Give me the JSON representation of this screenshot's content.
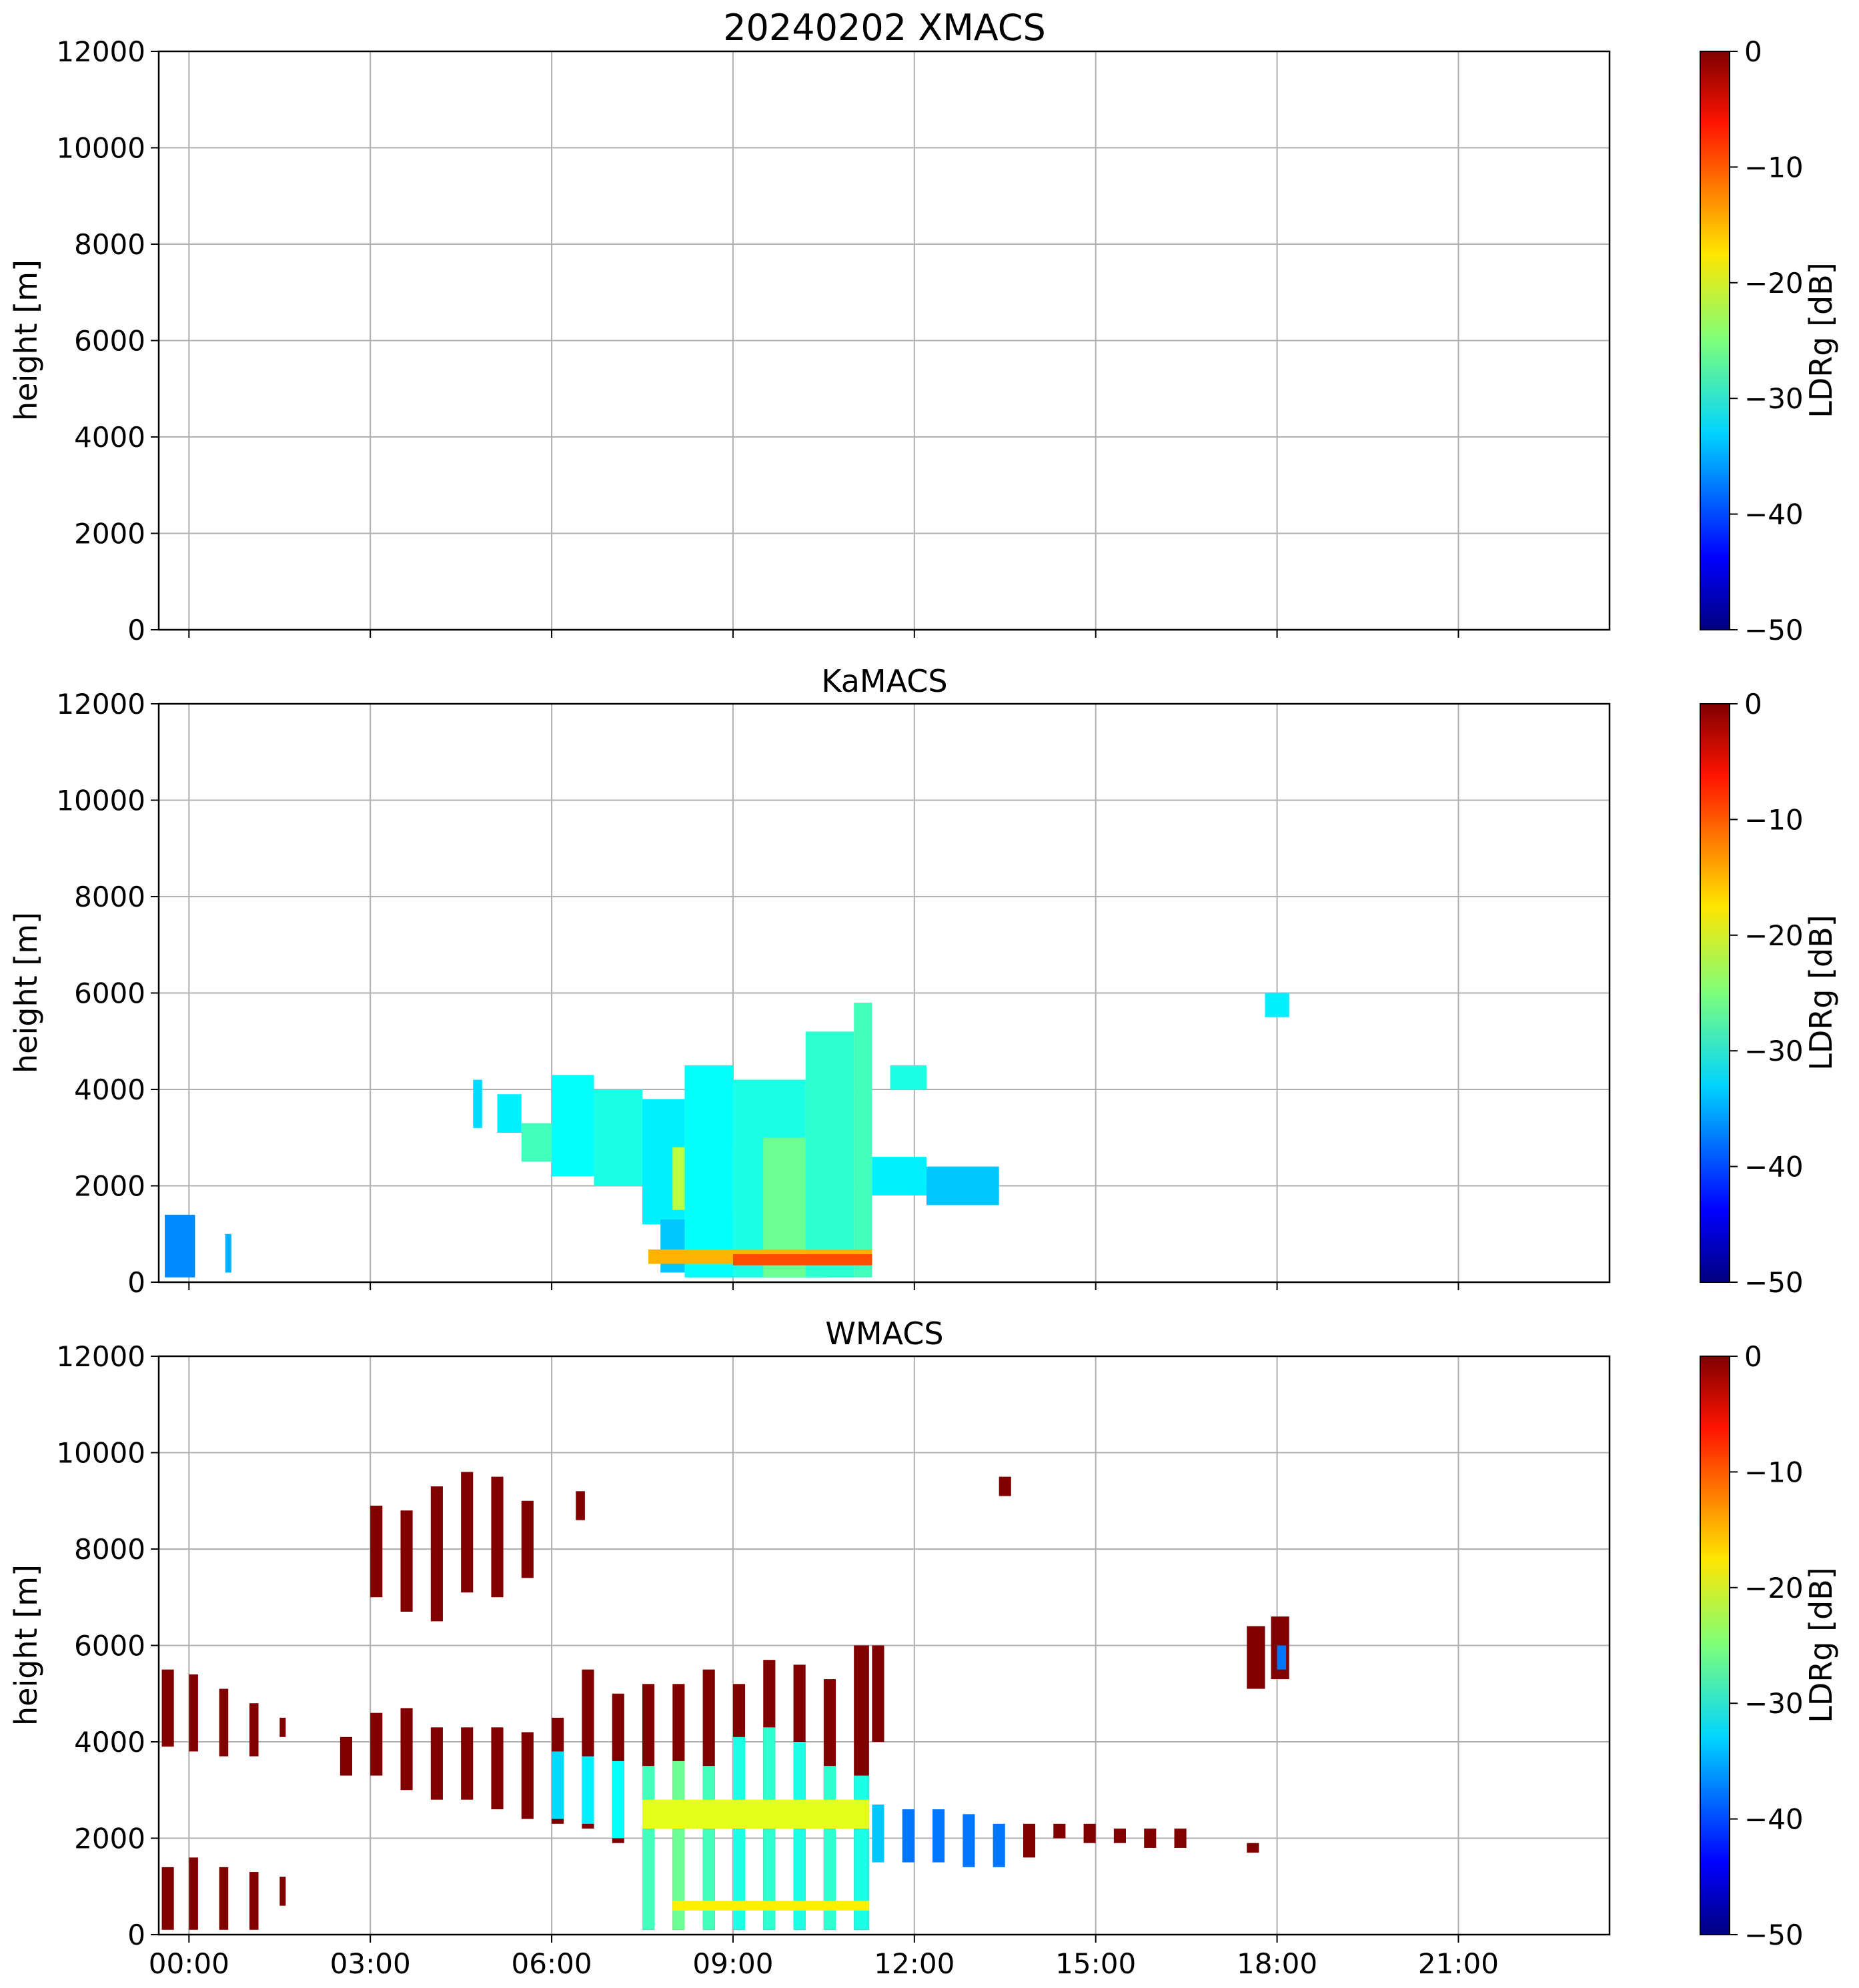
{
  "figure": {
    "title": "20240202 XMACS"
  },
  "chart_data": [
    {
      "type": "heatmap",
      "title": "20240202 XMACS",
      "instrument": "XMACS",
      "xlabel": "",
      "ylabel": "height [m]",
      "ylim": [
        0,
        12000
      ],
      "xlim_hours": [
        -0.5,
        23.5
      ],
      "yticks": [
        "0",
        "2000",
        "4000",
        "6000",
        "8000",
        "10000",
        "12000"
      ],
      "xticks": [],
      "grid": true,
      "colorbar": {
        "label": "LDRg [dB]",
        "range": [
          -50,
          0
        ],
        "colormap": "jet",
        "ticks": [
          "0",
          "−10",
          "−20",
          "−30",
          "−40",
          "−50"
        ]
      },
      "regions": []
    },
    {
      "type": "heatmap",
      "title": "KaMACS",
      "instrument": "KaMACS",
      "xlabel": "",
      "ylabel": "height [m]",
      "ylim": [
        0,
        12000
      ],
      "xlim_hours": [
        -0.5,
        23.5
      ],
      "yticks": [
        "0",
        "2000",
        "4000",
        "6000",
        "8000",
        "10000",
        "12000"
      ],
      "xticks": [],
      "grid": true,
      "colorbar": {
        "label": "LDRg [dB]",
        "range": [
          -50,
          0
        ],
        "colormap": "jet",
        "ticks": [
          "0",
          "−10",
          "−20",
          "−30",
          "−40",
          "−50"
        ]
      },
      "regions": [
        {
          "t0": -0.4,
          "t1": 0.1,
          "h0": 100,
          "h1": 1400,
          "ldr": -37
        },
        {
          "t0": 0.6,
          "t1": 0.7,
          "h0": 200,
          "h1": 1000,
          "ldr": -35
        },
        {
          "t0": 4.7,
          "t1": 4.85,
          "h0": 3200,
          "h1": 4200,
          "ldr": -33
        },
        {
          "t0": 5.1,
          "t1": 5.5,
          "h0": 3100,
          "h1": 3900,
          "ldr": -32
        },
        {
          "t0": 5.5,
          "t1": 6.0,
          "h0": 2500,
          "h1": 3300,
          "ldr": -28
        },
        {
          "t0": 6.0,
          "t1": 6.7,
          "h0": 2200,
          "h1": 4300,
          "ldr": -31
        },
        {
          "t0": 6.7,
          "t1": 7.5,
          "h0": 2000,
          "h1": 4000,
          "ldr": -30
        },
        {
          "t0": 7.5,
          "t1": 8.2,
          "h0": 1200,
          "h1": 3800,
          "ldr": -32
        },
        {
          "t0": 7.8,
          "t1": 8.2,
          "h0": 200,
          "h1": 1300,
          "ldr": -34
        },
        {
          "t0": 8.0,
          "t1": 9.0,
          "h0": 1500,
          "h1": 2800,
          "ldr": -22
        },
        {
          "t0": 8.2,
          "t1": 9.0,
          "h0": 100,
          "h1": 4500,
          "ldr": -31
        },
        {
          "t0": 9.0,
          "t1": 10.2,
          "h0": 100,
          "h1": 4200,
          "ldr": -30
        },
        {
          "t0": 9.5,
          "t1": 10.5,
          "h0": 100,
          "h1": 3000,
          "ldr": -26
        },
        {
          "t0": 10.2,
          "t1": 11.0,
          "h0": 100,
          "h1": 5200,
          "ldr": -29
        },
        {
          "t0": 11.0,
          "t1": 11.3,
          "h0": 100,
          "h1": 5800,
          "ldr": -28
        },
        {
          "t0": 7.6,
          "t1": 11.3,
          "h0": 380,
          "h1": 680,
          "ldr": -15
        },
        {
          "t0": 9.0,
          "t1": 11.3,
          "h0": 350,
          "h1": 580,
          "ldr": -10
        },
        {
          "t0": 11.3,
          "t1": 12.2,
          "h0": 1800,
          "h1": 2600,
          "ldr": -32
        },
        {
          "t0": 11.6,
          "t1": 12.2,
          "h0": 4000,
          "h1": 4500,
          "ldr": -30
        },
        {
          "t0": 12.2,
          "t1": 13.4,
          "h0": 1600,
          "h1": 2400,
          "ldr": -34
        },
        {
          "t0": 17.8,
          "t1": 18.2,
          "h0": 5500,
          "h1": 6000,
          "ldr": -32
        }
      ]
    },
    {
      "type": "heatmap",
      "title": "WMACS",
      "instrument": "WMACS",
      "xlabel": "",
      "ylabel": "height [m]",
      "ylim": [
        0,
        12000
      ],
      "xlim_hours": [
        -0.5,
        23.5
      ],
      "yticks": [
        "0",
        "2000",
        "4000",
        "6000",
        "8000",
        "10000",
        "12000"
      ],
      "xticks": [
        "00:00",
        "03:00",
        "06:00",
        "09:00",
        "12:00",
        "15:00",
        "18:00",
        "21:00"
      ],
      "grid": true,
      "colorbar": {
        "label": "LDRg [dB]",
        "range": [
          -50,
          0
        ],
        "colormap": "jet",
        "ticks": [
          "0",
          "−10",
          "−20",
          "−30",
          "−40",
          "−50"
        ]
      },
      "regions": [
        {
          "t0": -0.45,
          "t1": -0.25,
          "h0": 3900,
          "h1": 5500,
          "ldr": 0
        },
        {
          "t0": 0.0,
          "t1": 0.15,
          "h0": 3800,
          "h1": 5400,
          "ldr": 0
        },
        {
          "t0": 0.5,
          "t1": 0.65,
          "h0": 3700,
          "h1": 5100,
          "ldr": 0
        },
        {
          "t0": 1.0,
          "t1": 1.15,
          "h0": 3700,
          "h1": 4800,
          "ldr": 0
        },
        {
          "t0": 1.5,
          "t1": 1.6,
          "h0": 4100,
          "h1": 4500,
          "ldr": 0
        },
        {
          "t0": -0.45,
          "t1": -0.25,
          "h0": 100,
          "h1": 1400,
          "ldr": 0
        },
        {
          "t0": 0.0,
          "t1": 0.15,
          "h0": 100,
          "h1": 1600,
          "ldr": 0
        },
        {
          "t0": 0.5,
          "t1": 0.65,
          "h0": 100,
          "h1": 1400,
          "ldr": 0
        },
        {
          "t0": 1.0,
          "t1": 1.15,
          "h0": 100,
          "h1": 1300,
          "ldr": 0
        },
        {
          "t0": 1.5,
          "t1": 1.6,
          "h0": 600,
          "h1": 1200,
          "ldr": 0
        },
        {
          "t0": 3.0,
          "t1": 3.2,
          "h0": 7000,
          "h1": 8900,
          "ldr": 0
        },
        {
          "t0": 3.5,
          "t1": 3.7,
          "h0": 6700,
          "h1": 8800,
          "ldr": 0
        },
        {
          "t0": 4.0,
          "t1": 4.2,
          "h0": 6500,
          "h1": 9300,
          "ldr": 0
        },
        {
          "t0": 4.5,
          "t1": 4.7,
          "h0": 7100,
          "h1": 9600,
          "ldr": 0
        },
        {
          "t0": 5.0,
          "t1": 5.2,
          "h0": 7000,
          "h1": 9500,
          "ldr": 0
        },
        {
          "t0": 5.5,
          "t1": 5.7,
          "h0": 7400,
          "h1": 9000,
          "ldr": 0
        },
        {
          "t0": 6.4,
          "t1": 6.55,
          "h0": 8600,
          "h1": 9200,
          "ldr": 0
        },
        {
          "t0": 2.5,
          "t1": 2.7,
          "h0": 3300,
          "h1": 4100,
          "ldr": 0
        },
        {
          "t0": 3.0,
          "t1": 3.2,
          "h0": 3300,
          "h1": 4600,
          "ldr": 0
        },
        {
          "t0": 3.5,
          "t1": 3.7,
          "h0": 3000,
          "h1": 4700,
          "ldr": 0
        },
        {
          "t0": 4.0,
          "t1": 4.2,
          "h0": 2800,
          "h1": 4300,
          "ldr": 0
        },
        {
          "t0": 4.5,
          "t1": 4.7,
          "h0": 2800,
          "h1": 4300,
          "ldr": 0
        },
        {
          "t0": 5.0,
          "t1": 5.2,
          "h0": 2600,
          "h1": 4300,
          "ldr": 0
        },
        {
          "t0": 5.5,
          "t1": 5.7,
          "h0": 2400,
          "h1": 4200,
          "ldr": 0
        },
        {
          "t0": 6.0,
          "t1": 6.2,
          "h0": 2300,
          "h1": 4500,
          "ldr": 0
        },
        {
          "t0": 6.5,
          "t1": 6.7,
          "h0": 2200,
          "h1": 5500,
          "ldr": 0
        },
        {
          "t0": 7.0,
          "t1": 7.2,
          "h0": 1900,
          "h1": 5000,
          "ldr": 0
        },
        {
          "t0": 7.5,
          "t1": 7.7,
          "h0": 100,
          "h1": 5200,
          "ldr": 0
        },
        {
          "t0": 8.0,
          "t1": 8.2,
          "h0": 100,
          "h1": 5200,
          "ldr": 0
        },
        {
          "t0": 8.5,
          "t1": 8.7,
          "h0": 100,
          "h1": 5500,
          "ldr": 0
        },
        {
          "t0": 9.0,
          "t1": 9.2,
          "h0": 100,
          "h1": 5200,
          "ldr": 0
        },
        {
          "t0": 9.5,
          "t1": 9.7,
          "h0": 100,
          "h1": 5700,
          "ldr": 0
        },
        {
          "t0": 10.0,
          "t1": 10.2,
          "h0": 100,
          "h1": 5600,
          "ldr": 0
        },
        {
          "t0": 10.5,
          "t1": 10.7,
          "h0": 100,
          "h1": 5300,
          "ldr": 0
        },
        {
          "t0": 11.0,
          "t1": 11.25,
          "h0": 100,
          "h1": 6000,
          "ldr": 0
        },
        {
          "t0": 6.0,
          "t1": 6.2,
          "h0": 2400,
          "h1": 3800,
          "ldr": -33
        },
        {
          "t0": 6.5,
          "t1": 6.7,
          "h0": 2300,
          "h1": 3700,
          "ldr": -32
        },
        {
          "t0": 7.0,
          "t1": 7.2,
          "h0": 2000,
          "h1": 3600,
          "ldr": -31
        },
        {
          "t0": 7.5,
          "t1": 7.7,
          "h0": 100,
          "h1": 3500,
          "ldr": -28
        },
        {
          "t0": 8.0,
          "t1": 8.2,
          "h0": 100,
          "h1": 3600,
          "ldr": -26
        },
        {
          "t0": 8.5,
          "t1": 8.7,
          "h0": 100,
          "h1": 3500,
          "ldr": -28
        },
        {
          "t0": 9.0,
          "t1": 9.2,
          "h0": 100,
          "h1": 4100,
          "ldr": -30
        },
        {
          "t0": 9.5,
          "t1": 9.7,
          "h0": 100,
          "h1": 4300,
          "ldr": -29
        },
        {
          "t0": 10.0,
          "t1": 10.2,
          "h0": 100,
          "h1": 4000,
          "ldr": -30
        },
        {
          "t0": 10.5,
          "t1": 10.7,
          "h0": 100,
          "h1": 3500,
          "ldr": -29
        },
        {
          "t0": 11.0,
          "t1": 11.25,
          "h0": 100,
          "h1": 3300,
          "ldr": -30
        },
        {
          "t0": 7.5,
          "t1": 11.25,
          "h0": 2200,
          "h1": 2800,
          "ldr": -20
        },
        {
          "t0": 8.0,
          "t1": 11.25,
          "h0": 500,
          "h1": 700,
          "ldr": -18
        },
        {
          "t0": 11.3,
          "t1": 11.5,
          "h0": 4000,
          "h1": 6000,
          "ldr": 0
        },
        {
          "t0": 11.3,
          "t1": 11.5,
          "h0": 1500,
          "h1": 2700,
          "ldr": -34
        },
        {
          "t0": 11.8,
          "t1": 12.0,
          "h0": 1500,
          "h1": 2600,
          "ldr": -38
        },
        {
          "t0": 12.3,
          "t1": 12.5,
          "h0": 1500,
          "h1": 2600,
          "ldr": -38
        },
        {
          "t0": 12.8,
          "t1": 13.0,
          "h0": 1400,
          "h1": 2500,
          "ldr": -38
        },
        {
          "t0": 13.3,
          "t1": 13.5,
          "h0": 1400,
          "h1": 2300,
          "ldr": -38
        },
        {
          "t0": 13.8,
          "t1": 14.0,
          "h0": 1600,
          "h1": 2300,
          "ldr": 0
        },
        {
          "t0": 14.3,
          "t1": 14.5,
          "h0": 2000,
          "h1": 2300,
          "ldr": 0
        },
        {
          "t0": 14.8,
          "t1": 15.0,
          "h0": 1900,
          "h1": 2300,
          "ldr": 0
        },
        {
          "t0": 15.3,
          "t1": 15.5,
          "h0": 1900,
          "h1": 2200,
          "ldr": 0
        },
        {
          "t0": 15.8,
          "t1": 16.0,
          "h0": 1800,
          "h1": 2200,
          "ldr": 0
        },
        {
          "t0": 16.3,
          "t1": 16.5,
          "h0": 1800,
          "h1": 2200,
          "ldr": 0
        },
        {
          "t0": 13.4,
          "t1": 13.6,
          "h0": 9100,
          "h1": 9500,
          "ldr": 0
        },
        {
          "t0": 17.5,
          "t1": 17.8,
          "h0": 5100,
          "h1": 6400,
          "ldr": 0
        },
        {
          "t0": 17.9,
          "t1": 18.2,
          "h0": 5300,
          "h1": 6600,
          "ldr": 0
        },
        {
          "t0": 18.0,
          "t1": 18.15,
          "h0": 5500,
          "h1": 6000,
          "ldr": -38
        },
        {
          "t0": 17.5,
          "t1": 17.7,
          "h0": 1700,
          "h1": 1900,
          "ldr": 0
        }
      ]
    }
  ]
}
